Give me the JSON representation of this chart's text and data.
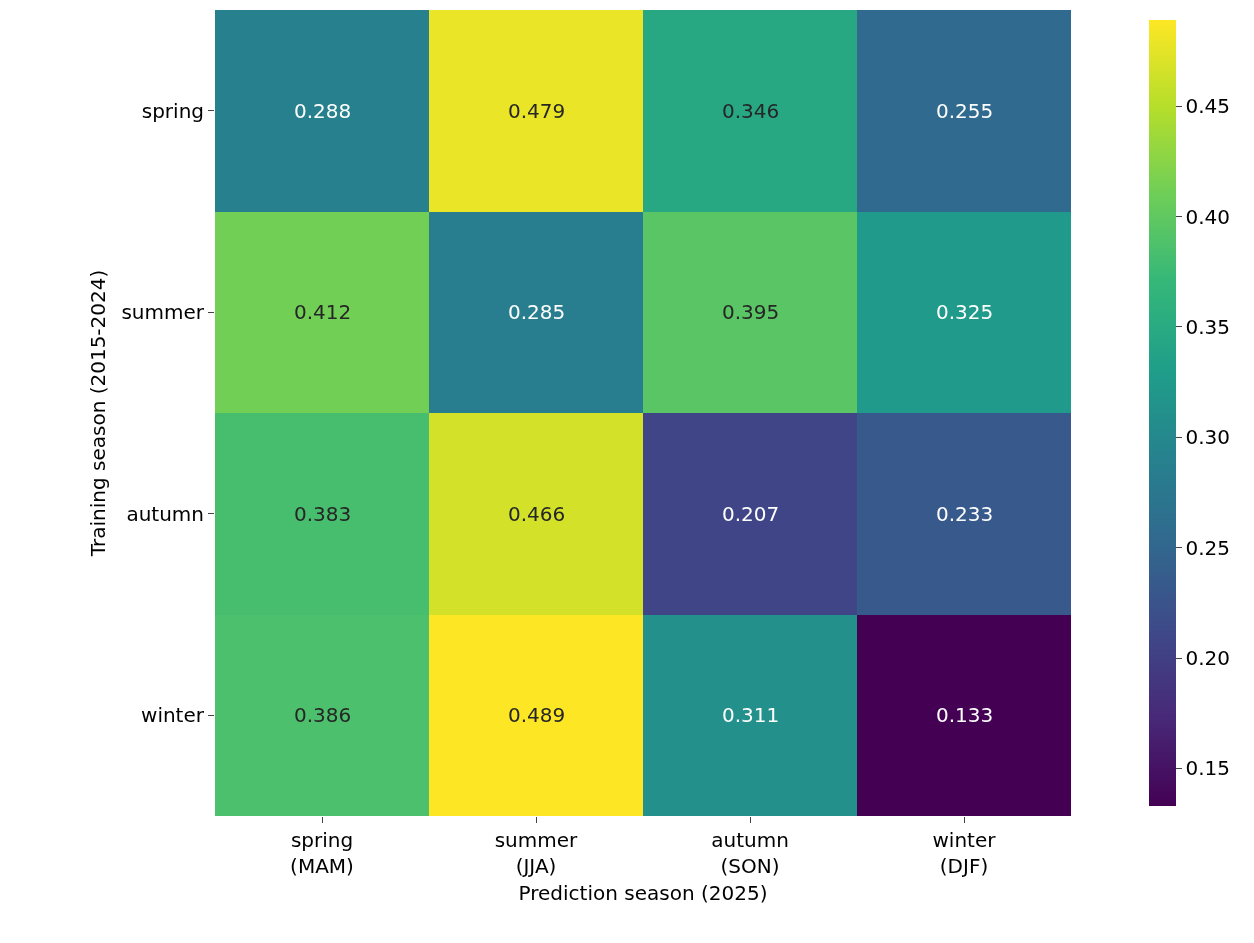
{
  "chart_data": {
    "type": "heatmap",
    "xlabel": "Prediction season (2025)",
    "ylabel": "Training season (2015-2024)",
    "categories": [
      "spring\n(MAM)",
      "summer\n(JJA)",
      "autumn\n(SON)",
      "winter\n(DJF)"
    ],
    "y_categories": [
      "spring",
      "summer",
      "autumn",
      "winter"
    ],
    "cells": [
      [
        0.288,
        0.479,
        0.346,
        0.255
      ],
      [
        0.412,
        0.285,
        0.395,
        0.325
      ],
      [
        0.383,
        0.466,
        0.207,
        0.233
      ],
      [
        0.386,
        0.489,
        0.311,
        0.133
      ]
    ],
    "clim": [
      0.133,
      0.489
    ],
    "cticks": [
      0.15,
      {
        "value": 0.2,
        "label": "0.20"
      },
      0.25,
      {
        "value": 0.3,
        "label": "0.30"
      },
      0.35,
      {
        "value": 0.4,
        "label": "0.40"
      },
      0.45
    ],
    "data_labels": true
  }
}
